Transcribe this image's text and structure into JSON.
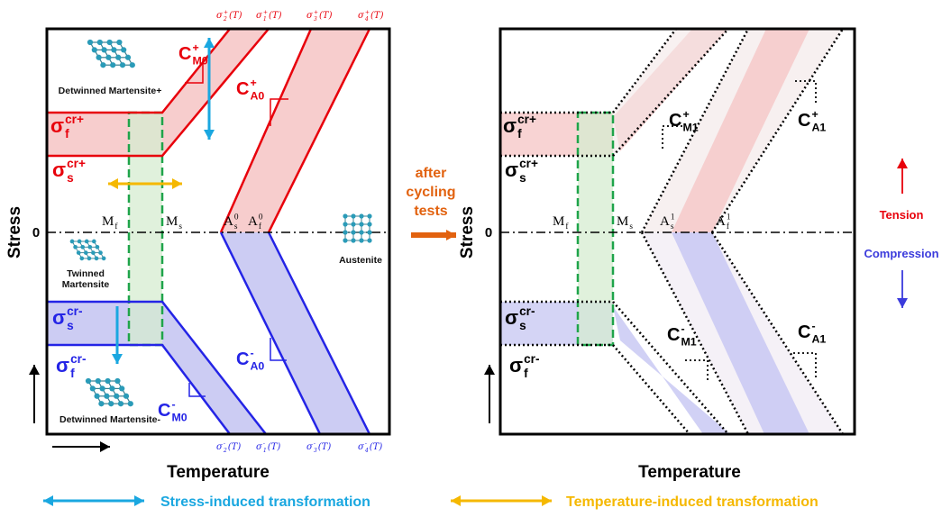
{
  "left": {
    "top_labels": [
      {
        "base": "σ",
        "sup": "+",
        "sub": "2",
        "tail": "(T)"
      },
      {
        "base": "σ",
        "sup": "+",
        "sub": "1",
        "tail": "(T)"
      },
      {
        "base": "σ",
        "sup": "+",
        "sub": "3",
        "tail": "(T)"
      },
      {
        "base": "σ",
        "sup": "+",
        "sub": "4",
        "tail": "(T)"
      }
    ],
    "bottom_labels": [
      {
        "base": "σ",
        "sup": "-",
        "sub": "2",
        "tail": "(T)"
      },
      {
        "base": "σ",
        "sup": "-",
        "sub": "1",
        "tail": "(T)"
      },
      {
        "base": "σ",
        "sup": "-",
        "sub": "3",
        "tail": "(T)"
      },
      {
        "base": "σ",
        "sup": "-",
        "sub": "4",
        "tail": "(T)"
      }
    ],
    "slopes": [
      {
        "base": "C",
        "sup": "+",
        "sub": "M0"
      },
      {
        "base": "C",
        "sup": "+",
        "sub": "A0"
      },
      {
        "base": "C",
        "sup": "-",
        "sub": "A0"
      },
      {
        "base": "C",
        "sup": "-",
        "sub": "M0"
      }
    ],
    "stresses": [
      {
        "base": "σ",
        "sub": "f",
        "sup": "cr+"
      },
      {
        "base": "σ",
        "sub": "s",
        "sup": "cr+"
      },
      {
        "base": "σ",
        "sub": "s",
        "sup": "cr-"
      },
      {
        "base": "σ",
        "sub": "f",
        "sup": "cr-"
      }
    ],
    "temps": [
      {
        "base": "M",
        "sub": "f"
      },
      {
        "base": "M",
        "sub": "s"
      },
      {
        "base": "A",
        "sub": "s",
        "sup": "0"
      },
      {
        "base": "A",
        "sub": "f",
        "sup": "0"
      }
    ],
    "phases": [
      [
        "Detwinned Martensite+"
      ],
      [
        "Twinned",
        "Martensite"
      ],
      [
        "Detwinned Martensite-"
      ],
      [
        "Austenite"
      ]
    ],
    "zero": "0",
    "y_axis": "Stress",
    "x_axis": "Temperature"
  },
  "middle": [
    "after",
    "cycling",
    "tests"
  ],
  "right": {
    "slopes": [
      {
        "base": "C",
        "sup": "+",
        "sub": "M1"
      },
      {
        "base": "C",
        "sup": "+",
        "sub": "A1"
      },
      {
        "base": "C",
        "sup": "-",
        "sub": "M1"
      },
      {
        "base": "C",
        "sup": "-",
        "sub": "A1"
      }
    ],
    "stresses": [
      {
        "base": "σ",
        "sub": "f",
        "sup": "cr+"
      },
      {
        "base": "σ",
        "sub": "s",
        "sup": "cr+"
      },
      {
        "base": "σ",
        "sub": "s",
        "sup": "cr-"
      },
      {
        "base": "σ",
        "sub": "f",
        "sup": "cr-"
      }
    ],
    "temps": [
      {
        "base": "M",
        "sub": "f"
      },
      {
        "base": "M",
        "sub": "s"
      },
      {
        "base": "A",
        "sub": "s",
        "sup": "1"
      },
      {
        "base": "A",
        "sub": "f",
        "sup": "1"
      }
    ],
    "zero": "0",
    "y_axis": "Stress",
    "x_axis": "Temperature"
  },
  "direction": {
    "tension": "Tension",
    "compression": "Compression"
  },
  "legend": [
    "Stress-induced transformation",
    "Temperature-induced transformation"
  ]
}
